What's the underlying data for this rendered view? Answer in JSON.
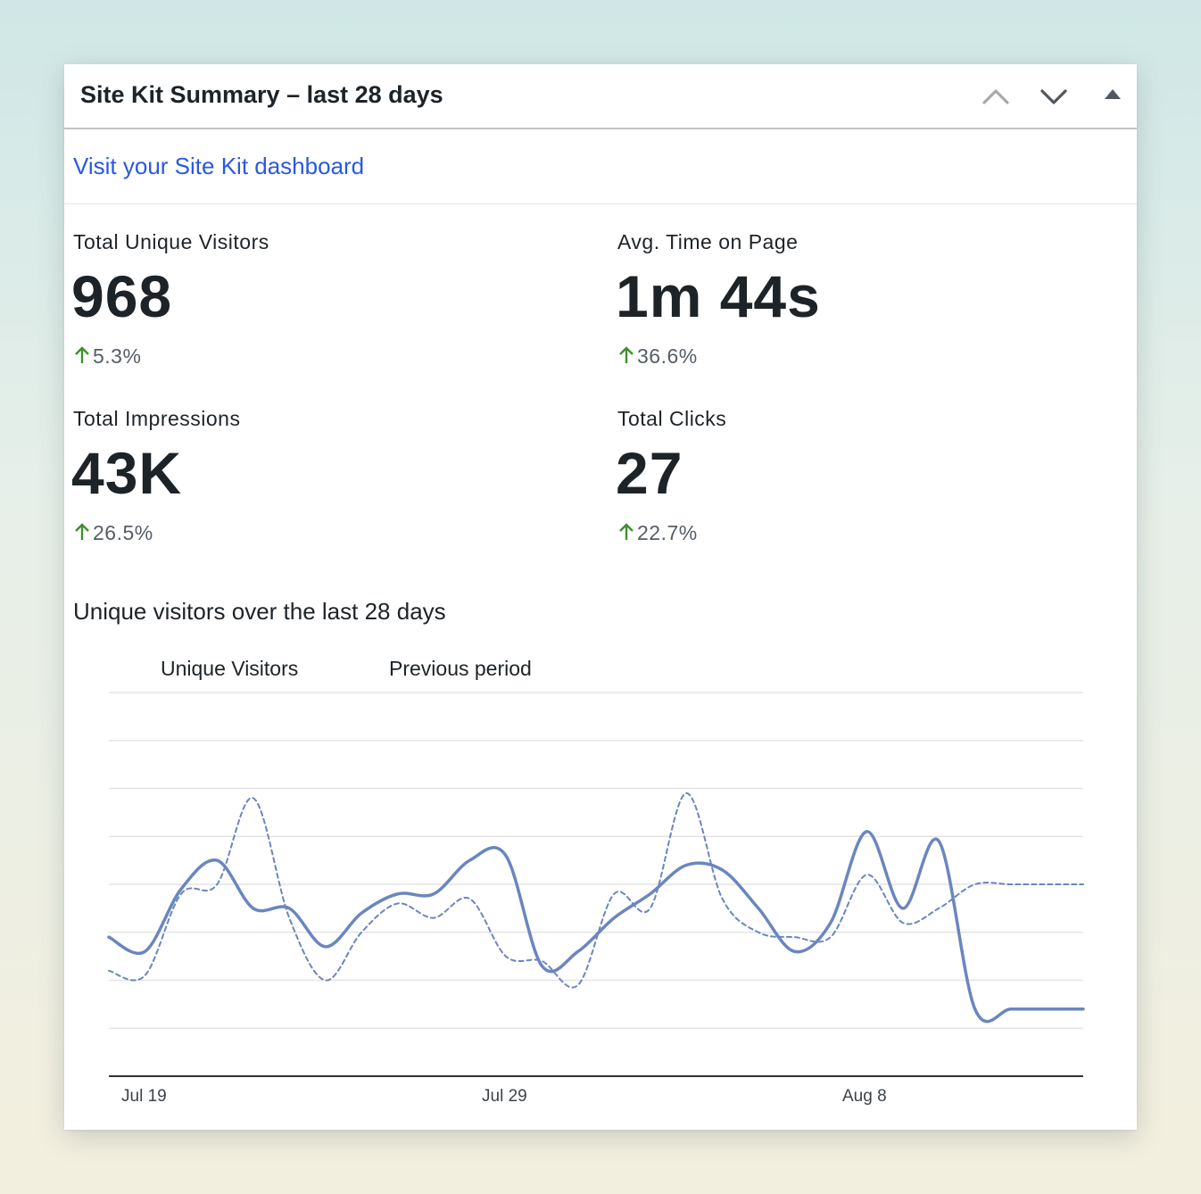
{
  "header": {
    "title": "Site Kit Summary – last 28 days"
  },
  "dashboard_link": "Visit your Site Kit dashboard",
  "metrics": [
    {
      "label": "Total Unique Visitors",
      "value": "968",
      "change": "5.3%"
    },
    {
      "label": "Avg. Time on Page",
      "value": "1m 44s",
      "change": "36.6%"
    },
    {
      "label": "Total Impressions",
      "value": "43K",
      "change": "26.5%"
    },
    {
      "label": "Total Clicks",
      "value": "27",
      "change": "22.7%"
    }
  ],
  "colors": {
    "link": "#2a58e3",
    "series": "#6a86c0",
    "positive_change": "#3f8f2f",
    "grid": "#e4e4e4",
    "axis": "#333333"
  },
  "icons": {
    "move_up": "chevron-up-icon",
    "move_down": "chevron-down-icon",
    "toggle": "triangle-up-icon",
    "change": "arrow-up-icon"
  },
  "chart_title": "Unique visitors over the last 28 days",
  "chart_data": {
    "type": "line",
    "title": "",
    "xlabel": "",
    "ylabel": "",
    "x_ticks": [
      "Jul 19",
      "Jul 29",
      "Aug 8"
    ],
    "x": [
      "Jul 18",
      "Jul 19",
      "Jul 20",
      "Jul 21",
      "Jul 22",
      "Jul 23",
      "Jul 24",
      "Jul 25",
      "Jul 26",
      "Jul 27",
      "Jul 28",
      "Jul 29",
      "Jul 30",
      "Jul 31",
      "Aug 1",
      "Aug 2",
      "Aug 3",
      "Aug 4",
      "Aug 5",
      "Aug 6",
      "Aug 7",
      "Aug 8",
      "Aug 9",
      "Aug 10",
      "Aug 11",
      "Aug 12",
      "Aug 13",
      "Aug 14"
    ],
    "ylim": [
      0,
      80
    ],
    "grid": true,
    "legend": "top-left",
    "series": [
      {
        "name": "Unique Visitors",
        "style": "solid",
        "values": [
          29,
          26,
          39,
          45,
          35,
          35,
          27,
          34,
          38,
          38,
          45,
          46,
          23,
          26,
          33,
          38,
          44,
          43,
          35,
          26,
          32,
          51,
          35,
          49,
          14,
          14,
          14,
          14
        ]
      },
      {
        "name": "Previous period",
        "style": "dashed",
        "values": [
          22,
          21,
          38,
          40,
          58,
          33,
          20,
          30,
          36,
          33,
          37,
          25,
          24,
          19,
          38,
          35,
          59,
          37,
          30,
          29,
          29,
          42,
          32,
          35,
          40,
          40,
          40,
          40
        ]
      }
    ]
  }
}
